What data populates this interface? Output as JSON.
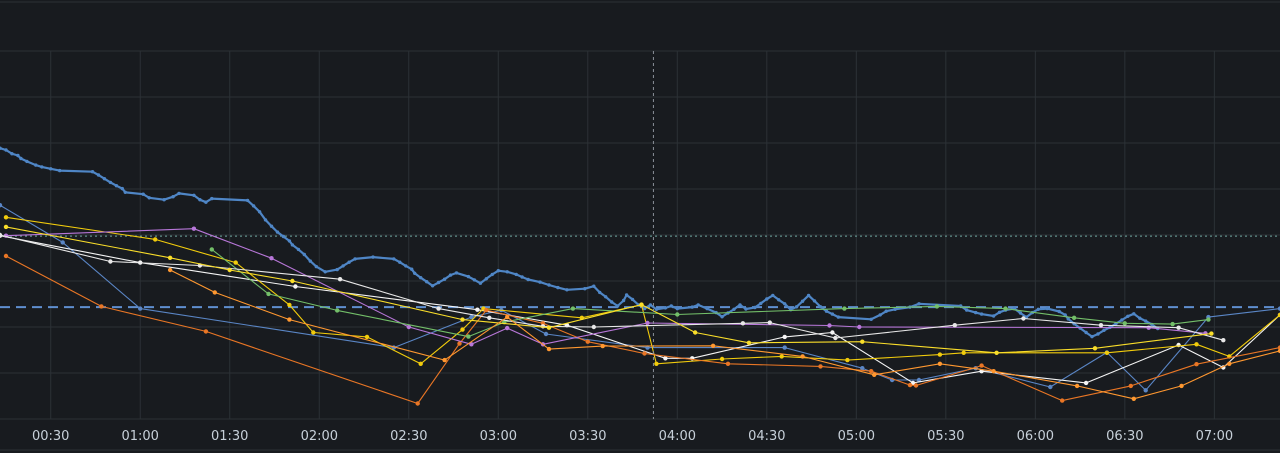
{
  "chart_data": {
    "type": "line",
    "title": "",
    "xlabel": "",
    "ylabel": "",
    "x_unit": "minutes after midnight",
    "xlim": [
      13,
      442
    ],
    "ylim": [
      0,
      10
    ],
    "grid": true,
    "legend": "none",
    "x_ticks": [
      "00:30",
      "01:00",
      "01:30",
      "02:00",
      "02:30",
      "03:00",
      "03:30",
      "04:00",
      "04:30",
      "05:00",
      "05:30",
      "06:00",
      "06:30",
      "07:00"
    ],
    "x_tick_values": [
      30,
      60,
      90,
      120,
      150,
      180,
      210,
      240,
      270,
      300,
      330,
      360,
      390,
      420
    ],
    "crosshair_x": 232,
    "threshold_dashed": 3.04,
    "threshold_dotted": 4.97,
    "colors": {
      "background": "#181b1f",
      "grid": "#2c3136",
      "tick_text": "#c7d0d9",
      "blue": "#5a86c6",
      "threshold": "#5f8fd0",
      "dotted": "#6fa8a0",
      "crosshair": "#8a9099"
    },
    "series": [
      {
        "color": "#4f86c6",
        "width": 2.2,
        "markers": true,
        "markerSize": 1.7,
        "values": [
          [
            13,
            7.36
          ],
          [
            15,
            7.31
          ],
          [
            17,
            7.21
          ],
          [
            19,
            7.16
          ],
          [
            20,
            7.08
          ],
          [
            22,
            7.0
          ],
          [
            25,
            6.9
          ],
          [
            27,
            6.85
          ],
          [
            30,
            6.8
          ],
          [
            33,
            6.75
          ],
          [
            44,
            6.72
          ],
          [
            46,
            6.63
          ],
          [
            48,
            6.53
          ],
          [
            50,
            6.43
          ],
          [
            52,
            6.34
          ],
          [
            54,
            6.26
          ],
          [
            55,
            6.16
          ],
          [
            61,
            6.11
          ],
          [
            63,
            6.01
          ],
          [
            68,
            5.96
          ],
          [
            71,
            6.04
          ],
          [
            73,
            6.13
          ],
          [
            78,
            6.08
          ],
          [
            80,
            5.96
          ],
          [
            82,
            5.89
          ],
          [
            84,
            5.99
          ],
          [
            96,
            5.94
          ],
          [
            98,
            5.79
          ],
          [
            100,
            5.63
          ],
          [
            102,
            5.41
          ],
          [
            104,
            5.24
          ],
          [
            106,
            5.08
          ],
          [
            108,
            4.96
          ],
          [
            110,
            4.84
          ],
          [
            111,
            4.73
          ],
          [
            113,
            4.61
          ],
          [
            115,
            4.47
          ],
          [
            117,
            4.29
          ],
          [
            119,
            4.14
          ],
          [
            122,
            4.0
          ],
          [
            126,
            4.06
          ],
          [
            128,
            4.16
          ],
          [
            130,
            4.26
          ],
          [
            132,
            4.35
          ],
          [
            138,
            4.4
          ],
          [
            145,
            4.35
          ],
          [
            147,
            4.26
          ],
          [
            149,
            4.16
          ],
          [
            151,
            4.07
          ],
          [
            152,
            3.96
          ],
          [
            154,
            3.84
          ],
          [
            156,
            3.73
          ],
          [
            158,
            3.62
          ],
          [
            160,
            3.71
          ],
          [
            162,
            3.8
          ],
          [
            164,
            3.91
          ],
          [
            166,
            3.97
          ],
          [
            170,
            3.87
          ],
          [
            172,
            3.78
          ],
          [
            174,
            3.69
          ],
          [
            176,
            3.81
          ],
          [
            178,
            3.93
          ],
          [
            180,
            4.03
          ],
          [
            183,
            4.0
          ],
          [
            186,
            3.93
          ],
          [
            188,
            3.86
          ],
          [
            190,
            3.79
          ],
          [
            194,
            3.72
          ],
          [
            197,
            3.64
          ],
          [
            200,
            3.57
          ],
          [
            203,
            3.51
          ],
          [
            209,
            3.54
          ],
          [
            212,
            3.61
          ],
          [
            214,
            3.44
          ],
          [
            216,
            3.32
          ],
          [
            218,
            3.18
          ],
          [
            220,
            3.07
          ],
          [
            222,
            3.22
          ],
          [
            223,
            3.37
          ],
          [
            225,
            3.25
          ],
          [
            227,
            3.1
          ],
          [
            229,
            3.0
          ],
          [
            231,
            3.1
          ],
          [
            233,
            2.98
          ],
          [
            236,
            3.02
          ],
          [
            238,
            3.07
          ],
          [
            240,
            3.0
          ],
          [
            245,
            3.04
          ],
          [
            247,
            3.1
          ],
          [
            250,
            3.0
          ],
          [
            253,
            2.89
          ],
          [
            255,
            2.78
          ],
          [
            257,
            2.88
          ],
          [
            259,
            2.98
          ],
          [
            261,
            3.1
          ],
          [
            263,
            2.99
          ],
          [
            266,
            3.03
          ],
          [
            268,
            3.14
          ],
          [
            270,
            3.26
          ],
          [
            272,
            3.36
          ],
          [
            274,
            3.24
          ],
          [
            276,
            3.13
          ],
          [
            278,
            2.97
          ],
          [
            280,
            3.05
          ],
          [
            282,
            3.2
          ],
          [
            284,
            3.36
          ],
          [
            286,
            3.21
          ],
          [
            288,
            3.05
          ],
          [
            290,
            2.93
          ],
          [
            292,
            2.85
          ],
          [
            294,
            2.77
          ],
          [
            305,
            2.71
          ],
          [
            308,
            2.83
          ],
          [
            310,
            2.93
          ],
          [
            313,
            2.98
          ],
          [
            318,
            3.04
          ],
          [
            321,
            3.13
          ],
          [
            335,
            3.07
          ],
          [
            337,
            2.96
          ],
          [
            340,
            2.89
          ],
          [
            342,
            2.85
          ],
          [
            346,
            2.8
          ],
          [
            348,
            2.9
          ],
          [
            350,
            2.96
          ],
          [
            353,
            3.0
          ],
          [
            355,
            2.88
          ],
          [
            357,
            2.77
          ],
          [
            359,
            2.89
          ],
          [
            361,
            2.98
          ],
          [
            364,
            3.0
          ],
          [
            368,
            2.92
          ],
          [
            370,
            2.83
          ],
          [
            371,
            2.72
          ],
          [
            373,
            2.59
          ],
          [
            375,
            2.47
          ],
          [
            377,
            2.35
          ],
          [
            379,
            2.24
          ],
          [
            381,
            2.31
          ],
          [
            383,
            2.41
          ],
          [
            385,
            2.49
          ],
          [
            387,
            2.59
          ],
          [
            389,
            2.69
          ],
          [
            391,
            2.79
          ],
          [
            393,
            2.86
          ],
          [
            395,
            2.74
          ],
          [
            397,
            2.66
          ],
          [
            399,
            2.57
          ],
          [
            401,
            2.46
          ]
        ]
      },
      {
        "color": "#5a86c6",
        "width": 1.1,
        "markers": true,
        "markerSize": 2.2,
        "values": [
          [
            13,
            5.81
          ],
          [
            34,
            4.8
          ],
          [
            60,
            3.0
          ],
          [
            145,
            1.94
          ],
          [
            171,
            2.77
          ],
          [
            181,
            2.96
          ],
          [
            196,
            2.31
          ],
          [
            230,
            1.94
          ],
          [
            276,
            1.94
          ],
          [
            302,
            1.38
          ],
          [
            312,
            1.06
          ],
          [
            321,
            1.06
          ],
          [
            340,
            1.38
          ],
          [
            365,
            0.87
          ],
          [
            384,
            1.81
          ],
          [
            397,
            0.78
          ],
          [
            418,
            2.77
          ],
          [
            442,
            3.0
          ]
        ]
      },
      {
        "color": "#f5f5f5",
        "width": 1.1,
        "markers": true,
        "markerSize": 2.2,
        "values": [
          [
            13,
            4.98
          ],
          [
            60,
            4.25
          ],
          [
            112,
            3.6
          ],
          [
            173,
            2.97
          ],
          [
            203,
            2.55
          ],
          [
            236,
            1.65
          ],
          [
            245,
            1.65
          ],
          [
            276,
            2.23
          ],
          [
            292,
            2.35
          ],
          [
            319,
            0.98
          ],
          [
            342,
            1.3
          ],
          [
            377,
            0.98
          ],
          [
            408,
            2.01
          ],
          [
            423,
            1.4
          ],
          [
            442,
            2.83
          ]
        ]
      },
      {
        "color": "#f2cc0c",
        "width": 1.1,
        "markers": true,
        "markerSize": 2.2,
        "values": [
          [
            15,
            5.48
          ],
          [
            65,
            4.88
          ],
          [
            92,
            4.25
          ],
          [
            110,
            3.1
          ],
          [
            118,
            2.35
          ],
          [
            136,
            2.23
          ],
          [
            154,
            1.5
          ],
          [
            168,
            2.43
          ],
          [
            175,
            3.0
          ],
          [
            208,
            2.75
          ],
          [
            228,
            3.1
          ],
          [
            233,
            1.5
          ],
          [
            255,
            1.63
          ],
          [
            275,
            1.7
          ],
          [
            297,
            1.6
          ],
          [
            328,
            1.75
          ],
          [
            336,
            1.8
          ],
          [
            384,
            1.8
          ],
          [
            414,
            2.03
          ],
          [
            425,
            1.7
          ],
          [
            442,
            2.83
          ]
        ]
      },
      {
        "color": "#e97625",
        "width": 1.1,
        "markers": true,
        "markerSize": 2.2,
        "values": [
          [
            15,
            4.43
          ],
          [
            47,
            3.06
          ],
          [
            82,
            2.38
          ],
          [
            153,
            0.42
          ],
          [
            167,
            2.05
          ],
          [
            176,
            2.96
          ],
          [
            195,
            2.6
          ],
          [
            210,
            2.1
          ],
          [
            229,
            1.78
          ],
          [
            257,
            1.5
          ],
          [
            288,
            1.43
          ],
          [
            305,
            1.3
          ],
          [
            318,
            0.92
          ],
          [
            320,
            0.91
          ],
          [
            342,
            1.45
          ],
          [
            369,
            0.5
          ],
          [
            392,
            0.9
          ],
          [
            414,
            1.49
          ],
          [
            442,
            1.94
          ]
        ]
      },
      {
        "color": "#b877d9",
        "width": 1.1,
        "markers": true,
        "markerSize": 2.2,
        "values": [
          [
            15,
            4.98
          ],
          [
            78,
            5.17
          ],
          [
            104,
            4.37
          ],
          [
            150,
            2.5
          ],
          [
            171,
            2.03
          ],
          [
            183,
            2.47
          ],
          [
            195,
            2.03
          ],
          [
            230,
            2.61
          ],
          [
            291,
            2.54
          ],
          [
            301,
            2.5
          ],
          [
            398,
            2.48
          ],
          [
            417,
            2.33
          ]
        ]
      },
      {
        "color": "#73bf69",
        "width": 1.1,
        "markers": true,
        "markerSize": 2.2,
        "values": [
          [
            84,
            4.61
          ],
          [
            103,
            3.4
          ],
          [
            126,
            2.95
          ],
          [
            170,
            2.24
          ],
          [
            182,
            2.63
          ],
          [
            205,
            3.0
          ],
          [
            240,
            2.84
          ],
          [
            296,
            3.0
          ],
          [
            327,
            3.06
          ],
          [
            350,
            3.0
          ],
          [
            373,
            2.75
          ],
          [
            390,
            2.6
          ],
          [
            406,
            2.58
          ],
          [
            418,
            2.7
          ]
        ]
      },
      {
        "color": "#e8e8e8",
        "width": 1.1,
        "markers": true,
        "markerSize": 2.2,
        "values": [
          [
            13,
            5.0
          ],
          [
            50,
            4.28
          ],
          [
            80,
            4.17
          ],
          [
            127,
            3.8
          ],
          [
            160,
            3.0
          ],
          [
            177,
            2.75
          ],
          [
            195,
            2.52
          ],
          [
            212,
            2.5
          ],
          [
            262,
            2.6
          ],
          [
            271,
            2.62
          ],
          [
            293,
            2.2
          ],
          [
            333,
            2.55
          ],
          [
            356,
            2.73
          ],
          [
            382,
            2.55
          ],
          [
            408,
            2.48
          ],
          [
            423,
            2.14
          ]
        ]
      },
      {
        "color": "#fade2a",
        "width": 1.1,
        "markers": true,
        "markerSize": 2.2,
        "values": [
          [
            15,
            5.22
          ],
          [
            70,
            4.38
          ],
          [
            90,
            4.05
          ],
          [
            111,
            3.75
          ],
          [
            168,
            2.7
          ],
          [
            197,
            2.48
          ],
          [
            228,
            3.11
          ],
          [
            246,
            2.35
          ],
          [
            264,
            2.07
          ],
          [
            302,
            2.1
          ],
          [
            347,
            1.8
          ],
          [
            380,
            1.92
          ],
          [
            419,
            2.32
          ]
        ]
      },
      {
        "color": "#ff9830",
        "width": 1.1,
        "markers": true,
        "markerSize": 2.2,
        "values": [
          [
            70,
            4.05
          ],
          [
            85,
            3.44
          ],
          [
            110,
            2.7
          ],
          [
            162,
            1.6
          ],
          [
            183,
            2.77
          ],
          [
            197,
            1.9
          ],
          [
            215,
            1.98
          ],
          [
            252,
            1.99
          ],
          [
            282,
            1.7
          ],
          [
            306,
            1.2
          ],
          [
            328,
            1.5
          ],
          [
            346,
            1.3
          ],
          [
            374,
            0.9
          ],
          [
            393,
            0.55
          ],
          [
            409,
            0.9
          ],
          [
            425,
            1.5
          ],
          [
            442,
            1.85
          ]
        ]
      }
    ]
  }
}
